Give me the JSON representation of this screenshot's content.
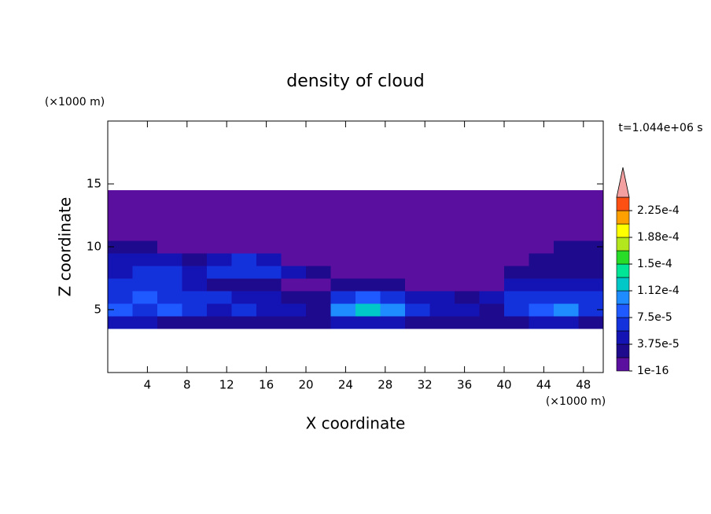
{
  "chart_data": {
    "type": "contour",
    "title": "density of cloud",
    "time_label": "t=1.044e+06 s",
    "x_label": "X coordinate",
    "y_label": "Z coordinate",
    "x_unit": "(×1000 m)",
    "y_unit": "(×1000 m)",
    "xlim": [
      0,
      50
    ],
    "xticks": [
      4,
      8,
      12,
      16,
      20,
      24,
      28,
      32,
      36,
      40,
      44,
      48
    ],
    "ylim": [
      0,
      20
    ],
    "yticks": [
      5,
      10,
      15
    ],
    "field": {
      "x": [
        0,
        2.5,
        5,
        7.5,
        10,
        12.5,
        15,
        17.5,
        20,
        22.5,
        25,
        27.5,
        30,
        32.5,
        35,
        37.5,
        40,
        42.5,
        45,
        47.5,
        50
      ],
      "z": [
        3.5,
        4.5,
        5.5,
        6.5,
        7.5,
        8.5,
        9.5,
        10.5,
        11.5,
        12.5,
        13.5,
        14.5
      ],
      "values": [
        [
          4e-05,
          4e-05,
          3e-05,
          3e-05,
          3e-05,
          3e-05,
          3e-05,
          3e-05,
          3e-05,
          4e-05,
          5e-05,
          5e-05,
          3e-05,
          3e-05,
          3e-05,
          3e-05,
          3e-05,
          4e-05,
          4e-05,
          3e-05
        ],
        [
          8e-05,
          7e-05,
          9e-05,
          7e-05,
          5e-05,
          6e-05,
          4e-05,
          5e-05,
          3e-05,
          0.0001,
          0.00013,
          0.00011,
          6e-05,
          5e-05,
          4e-05,
          3e-05,
          6e-05,
          9e-05,
          0.0001,
          6e-05
        ],
        [
          7e-05,
          8e-05,
          7e-05,
          6e-05,
          6e-05,
          5e-05,
          4e-05,
          3e-05,
          3e-05,
          6e-05,
          8e-05,
          7e-05,
          5e-05,
          4e-05,
          3e-05,
          4e-05,
          6e-05,
          6e-05,
          7e-05,
          6e-05
        ],
        [
          6e-05,
          7e-05,
          6e-05,
          5e-05,
          3e-05,
          3e-05,
          3e-05,
          1e-05,
          1e-05,
          3e-05,
          3e-05,
          3e-05,
          1e-05,
          1e-05,
          1e-05,
          1e-05,
          4e-05,
          5e-05,
          5e-05,
          4e-05
        ],
        [
          5e-05,
          6e-05,
          6e-05,
          5e-05,
          6e-05,
          7e-05,
          6e-05,
          4e-05,
          3e-05,
          1e-05,
          1e-05,
          1e-05,
          1e-05,
          1e-05,
          1e-05,
          1e-05,
          3e-05,
          3e-05,
          3e-05,
          3e-05
        ],
        [
          5e-05,
          5e-05,
          4e-05,
          3e-05,
          5e-05,
          6e-05,
          4e-05,
          1e-05,
          1e-05,
          1e-05,
          1e-05,
          1e-05,
          1e-05,
          1e-05,
          1e-05,
          1e-05,
          1e-05,
          3e-05,
          3e-05,
          3e-05
        ],
        [
          3e-05,
          3e-05,
          1e-05,
          1e-05,
          1e-05,
          1e-05,
          1e-05,
          1e-05,
          1e-05,
          1e-05,
          1e-05,
          1e-05,
          1e-05,
          1e-05,
          1e-05,
          1e-05,
          1e-05,
          1e-05,
          3e-05,
          3e-05
        ],
        [
          1e-05,
          1e-05,
          1e-05,
          1e-05,
          1e-05,
          1e-05,
          1e-05,
          1e-05,
          1e-05,
          1e-05,
          1e-05,
          1e-05,
          1e-05,
          1e-05,
          1e-05,
          1e-05,
          1e-05,
          1e-05,
          1e-05,
          1e-05
        ],
        [
          1e-05,
          1e-05,
          1e-05,
          1e-05,
          1e-05,
          1e-05,
          1e-05,
          1e-05,
          1e-05,
          1e-05,
          1e-05,
          1e-05,
          1e-05,
          1e-05,
          1e-05,
          1e-05,
          1e-05,
          1e-05,
          1e-05,
          1e-05
        ],
        [
          1e-05,
          1e-05,
          1e-05,
          1e-05,
          1e-05,
          1e-05,
          1e-05,
          1e-05,
          1e-05,
          1e-05,
          1e-05,
          1e-05,
          1e-05,
          1e-05,
          1e-05,
          1e-05,
          1e-05,
          1e-05,
          1e-05,
          1e-05
        ],
        [
          1e-05,
          1e-05,
          1e-05,
          1e-05,
          1e-05,
          1e-05,
          1e-05,
          1e-05,
          1e-05,
          1e-05,
          1e-05,
          1e-05,
          1e-05,
          1e-05,
          1e-05,
          1e-05,
          1e-05,
          1e-05,
          1e-05,
          1e-05
        ]
      ]
    },
    "colorbar": {
      "levels": [
        1e-16,
        1.875e-05,
        3.75e-05,
        5.625e-05,
        7.5e-05,
        9.375e-05,
        0.0001125,
        0.00013125,
        0.00015,
        0.00016875,
        0.0001875,
        0.00020625,
        0.000225,
        0.00024375
      ],
      "colors": [
        "#5a0f9f",
        "#1e0a8c",
        "#1414b4",
        "#1432dc",
        "#1e5aff",
        "#1e8cff",
        "#00c8c8",
        "#00e696",
        "#28dc28",
        "#b4e61e",
        "#ffff00",
        "#ffa000",
        "#ff5014"
      ],
      "extend_color": "#f5a0a0",
      "ticks": [
        {
          "value": 1e-16,
          "label": "1e-16"
        },
        {
          "value": 3.75e-05,
          "label": "3.75e-5"
        },
        {
          "value": 7.5e-05,
          "label": "7.5e-5"
        },
        {
          "value": 0.0001125,
          "label": "1.12e-4"
        },
        {
          "value": 0.00015,
          "label": "1.5e-4"
        },
        {
          "value": 0.0001875,
          "label": "1.88e-4"
        },
        {
          "value": 0.000225,
          "label": "2.25e-4"
        }
      ]
    }
  }
}
